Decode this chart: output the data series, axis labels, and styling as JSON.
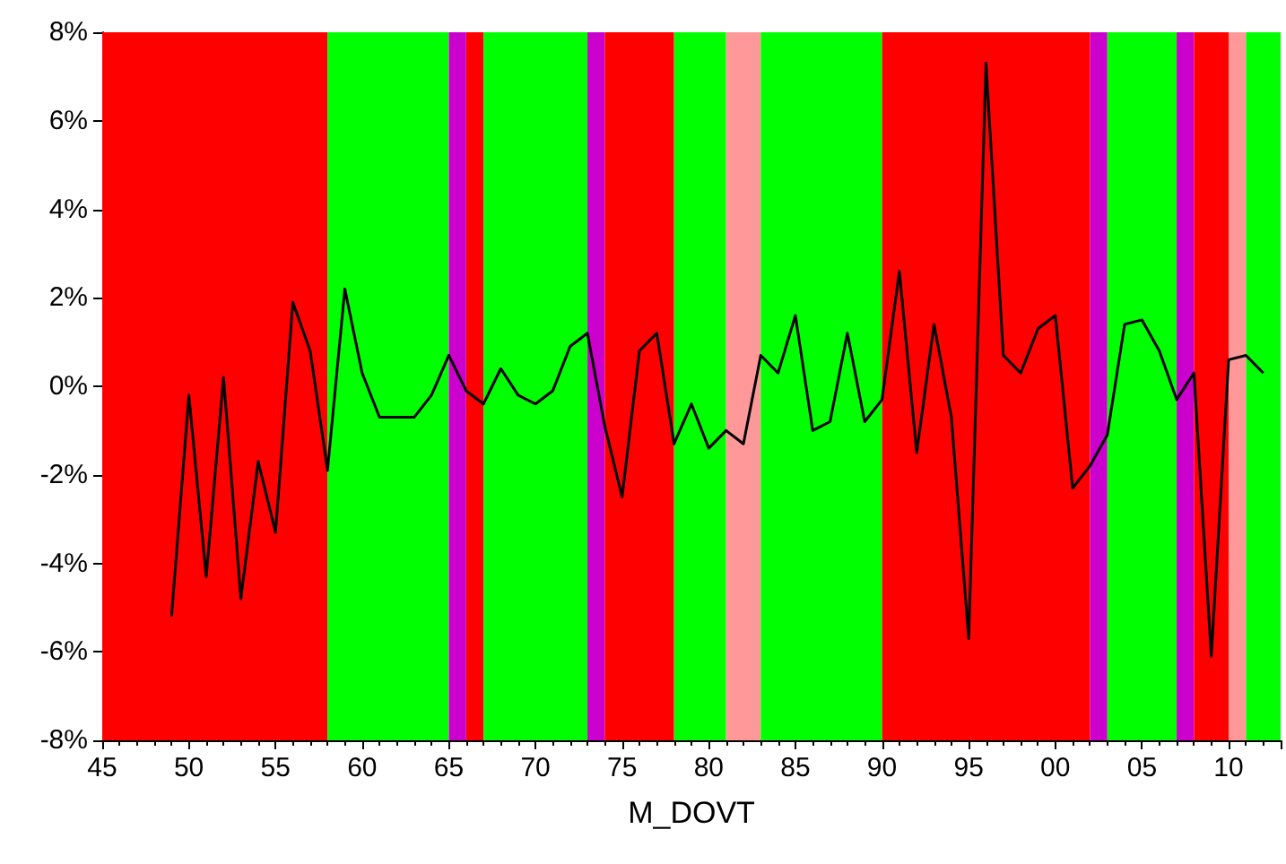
{
  "chart_data": {
    "type": "line",
    "xlabel": "M_DOVT",
    "x": [
      1949,
      1950,
      1951,
      1952,
      1953,
      1954,
      1955,
      1956,
      1957,
      1958,
      1959,
      1960,
      1961,
      1962,
      1963,
      1964,
      1965,
      1966,
      1967,
      1968,
      1969,
      1970,
      1971,
      1972,
      1973,
      1974,
      1975,
      1976,
      1977,
      1978,
      1979,
      1980,
      1981,
      1982,
      1983,
      1984,
      1985,
      1986,
      1987,
      1988,
      1989,
      1990,
      1991,
      1992,
      1993,
      1994,
      1995,
      1996,
      1997,
      1998,
      1999,
      2000,
      2001,
      2002,
      2003,
      2004,
      2005,
      2006,
      2007,
      2008,
      2009,
      2010,
      2011,
      2012
    ],
    "series": [
      {
        "color": "#000000",
        "values": [
          -5.2,
          -0.2,
          -4.3,
          0.2,
          -4.8,
          -1.7,
          -3.3,
          1.9,
          0.8,
          -1.9,
          2.2,
          0.3,
          -0.7,
          -0.7,
          -0.7,
          -0.2,
          0.7,
          -0.1,
          -0.4,
          0.4,
          -0.2,
          -0.4,
          -0.1,
          0.9,
          1.2,
          -0.9,
          -2.5,
          0.8,
          1.2,
          -1.3,
          -0.4,
          -1.4,
          -1.0,
          -1.3,
          0.7,
          0.3,
          1.6,
          -1.0,
          -0.8,
          1.2,
          -0.8,
          -0.3,
          2.6,
          -1.5,
          1.4,
          -0.7,
          -5.7,
          7.3,
          0.7,
          0.3,
          1.3,
          1.6,
          -2.3,
          -1.8,
          -1.1,
          1.4,
          1.5,
          0.8,
          -0.3,
          0.3,
          -6.1,
          0.6,
          0.7,
          0.3
        ]
      }
    ],
    "xlim": [
      1945,
      2013
    ],
    "xticks": [
      {
        "value": 1945,
        "label": "45"
      },
      {
        "value": 1950,
        "label": "50"
      },
      {
        "value": 1955,
        "label": "55"
      },
      {
        "value": 1960,
        "label": "60"
      },
      {
        "value": 1965,
        "label": "65"
      },
      {
        "value": 1970,
        "label": "70"
      },
      {
        "value": 1975,
        "label": "75"
      },
      {
        "value": 1980,
        "label": "80"
      },
      {
        "value": 1985,
        "label": "85"
      },
      {
        "value": 1990,
        "label": "90"
      },
      {
        "value": 1995,
        "label": "95"
      },
      {
        "value": 2000,
        "label": "00"
      },
      {
        "value": 2005,
        "label": "05"
      },
      {
        "value": 2010,
        "label": "10"
      }
    ],
    "ylim": [
      -8,
      8
    ],
    "yticks": [
      {
        "value": -8,
        "label": "-8%"
      },
      {
        "value": -6,
        "label": "-6%"
      },
      {
        "value": -4,
        "label": "-4%"
      },
      {
        "value": -2,
        "label": "-2%"
      },
      {
        "value": 0,
        "label": "0%"
      },
      {
        "value": 2,
        "label": "2%"
      },
      {
        "value": 4,
        "label": "4%"
      },
      {
        "value": 6,
        "label": "6%"
      },
      {
        "value": 8,
        "label": "8%"
      }
    ],
    "bands": [
      {
        "axis": "x",
        "from": 1945,
        "to": 1958,
        "color": "#ff0000"
      },
      {
        "axis": "x",
        "from": 1958,
        "to": 1965,
        "color": "#00ff00"
      },
      {
        "axis": "x",
        "from": 1965,
        "to": 1966,
        "color": "#cc00cc"
      },
      {
        "axis": "x",
        "from": 1966,
        "to": 1967,
        "color": "#ff0000"
      },
      {
        "axis": "x",
        "from": 1967,
        "to": 1973,
        "color": "#00ff00"
      },
      {
        "axis": "x",
        "from": 1973,
        "to": 1974,
        "color": "#cc00cc"
      },
      {
        "axis": "x",
        "from": 1974,
        "to": 1978,
        "color": "#ff0000"
      },
      {
        "axis": "x",
        "from": 1978,
        "to": 1981,
        "color": "#00ff00"
      },
      {
        "axis": "x",
        "from": 1981,
        "to": 1983,
        "color": "#ff9999"
      },
      {
        "axis": "x",
        "from": 1983,
        "to": 1990,
        "color": "#00ff00"
      },
      {
        "axis": "x",
        "from": 1990,
        "to": 2002,
        "color": "#ff0000"
      },
      {
        "axis": "x",
        "from": 2002,
        "to": 2003,
        "color": "#cc00cc"
      },
      {
        "axis": "x",
        "from": 2003,
        "to": 2007,
        "color": "#00ff00"
      },
      {
        "axis": "x",
        "from": 2007,
        "to": 2008,
        "color": "#cc00cc"
      },
      {
        "axis": "x",
        "from": 2008,
        "to": 2010,
        "color": "#ff0000"
      },
      {
        "axis": "x",
        "from": 2010,
        "to": 2011,
        "color": "#ff9999"
      },
      {
        "axis": "x",
        "from": 2011,
        "to": 2013,
        "color": "#00ff00"
      }
    ],
    "grid": false,
    "marker": "none",
    "line_style": "solid"
  }
}
